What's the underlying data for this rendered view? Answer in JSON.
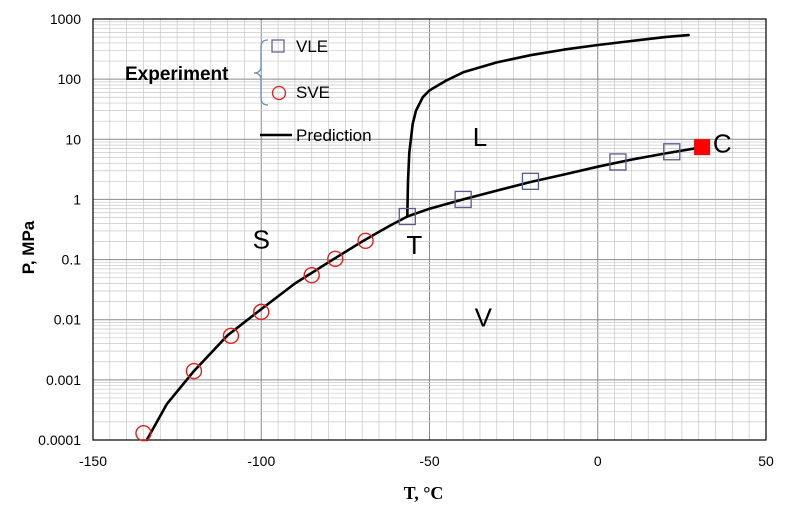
{
  "chart_data": {
    "type": "scatter",
    "title": "",
    "xlabel": "T, °C",
    "ylabel": "P, MPa",
    "xlim": [
      -150,
      50
    ],
    "ylim": [
      0.0001,
      1000
    ],
    "yscale": "log",
    "grid": true,
    "x_ticks": [
      "-150",
      "-100",
      "-50",
      "0",
      "50"
    ],
    "y_ticks": [
      "0.0001",
      "0.001",
      "0.01",
      "0.1",
      "1",
      "10",
      "100",
      "1000"
    ],
    "legend": {
      "group_label": "Experiment",
      "placement": "top-left",
      "entries": [
        "VLE",
        "SVE",
        "Prediction"
      ]
    },
    "series": [
      {
        "name": "VLE",
        "marker": "square",
        "color": "#5a5a8c",
        "x": [
          -56.6,
          -40,
          -20,
          6,
          22
        ],
        "y": [
          0.52,
          1.0,
          2.0,
          4.2,
          6.2
        ]
      },
      {
        "name": "SVE",
        "marker": "circle",
        "color": "#e02020",
        "x": [
          -135,
          -120,
          -109,
          -100,
          -85,
          -78,
          -69
        ],
        "y": [
          0.00013,
          0.0014,
          0.0054,
          0.0135,
          0.055,
          0.103,
          0.205
        ]
      },
      {
        "name": "Prediction",
        "marker": "line",
        "color": "#000000",
        "segments": [
          {
            "x": [
              -134,
              -128,
              -120,
              -110,
              -100,
              -90,
              -80,
              -70,
              -62,
              -56.6,
              -50,
              -40,
              -30,
              -20,
              -10,
              0,
              10,
              20,
              31
            ],
            "y": [
              0.0001,
              0.0004,
              0.0014,
              0.0055,
              0.015,
              0.04,
              0.09,
              0.2,
              0.36,
              0.52,
              0.7,
              1.0,
              1.4,
              1.95,
              2.6,
              3.5,
              4.6,
              5.8,
              7.4
            ]
          },
          {
            "x": [
              -56.6,
              -56.4,
              -56,
              -55,
              -54,
              -52,
              -50,
              -45,
              -40,
              -30,
              -20,
              -10,
              0,
              10,
              20,
              27
            ],
            "y": [
              0.52,
              2,
              6,
              18,
              30,
              50,
              65,
              95,
              130,
              190,
              250,
              310,
              370,
              430,
              500,
              540
            ]
          }
        ]
      }
    ],
    "critical_point": {
      "x": 31,
      "y": 7.4,
      "color": "#ff0000"
    },
    "annotations": [
      {
        "text": "L",
        "x": -35,
        "y": 10
      },
      {
        "text": "C",
        "x": 37,
        "y": 7.8
      },
      {
        "text": "S",
        "x": -100,
        "y": 0.2
      },
      {
        "text": "T",
        "x": -54.5,
        "y": 0.16
      },
      {
        "text": "V",
        "x": -34,
        "y": 0.01
      }
    ]
  }
}
